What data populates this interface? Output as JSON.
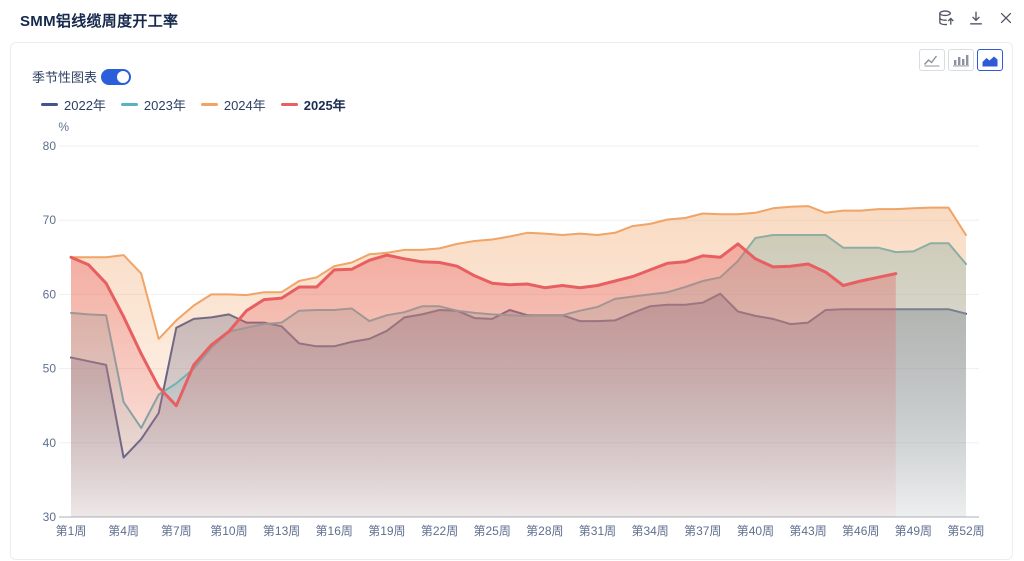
{
  "header": {
    "title": "SMM铝线缆周度开工率",
    "icons": [
      {
        "name": "export-data-icon"
      },
      {
        "name": "download-icon"
      },
      {
        "name": "close-icon"
      }
    ]
  },
  "controls": {
    "seasonal_toggle_label": "季节性图表",
    "seasonal_toggle_on": true,
    "toggle_color": "#2b5fd9",
    "chart_type_buttons": [
      "line",
      "bar",
      "area"
    ],
    "selected_chart_type": "area",
    "selected_color": "#2f5bd7"
  },
  "chart_data": {
    "type": "area",
    "title": "SMM铝线缆周度开工率",
    "unit": "%",
    "ylim": [
      30,
      80
    ],
    "y_ticks": [
      30,
      40,
      50,
      60,
      70,
      80
    ],
    "x_weeks": 52,
    "x_tick_weeks": [
      1,
      4,
      7,
      10,
      13,
      16,
      19,
      22,
      25,
      28,
      31,
      34,
      37,
      40,
      43,
      46,
      49,
      52
    ],
    "x_tick_labels": [
      "第1周",
      "第4周",
      "第7周",
      "第10周",
      "第13周",
      "第16周",
      "第19周",
      "第22周",
      "第25周",
      "第28周",
      "第31周",
      "第34周",
      "第37周",
      "第40周",
      "第43周",
      "第46周",
      "第49周",
      "第52周"
    ],
    "grid": true,
    "legend_position": "top-left",
    "series": [
      {
        "name": "2022年",
        "color": "#46548c",
        "line_width": 2,
        "current": false,
        "values": [
          51.5,
          51,
          50.5,
          38,
          40.5,
          44,
          55.5,
          56.7,
          56.9,
          57.3,
          56.2,
          56.2,
          55.7,
          53.4,
          53,
          53,
          53.6,
          54,
          55.1,
          56.9,
          57.3,
          57.9,
          57.8,
          56.8,
          56.7,
          57.9,
          57.2,
          57.2,
          57.2,
          56.4,
          56.4,
          56.5,
          57.5,
          58.4,
          58.6,
          58.6,
          58.9,
          60.1,
          57.7,
          57.1,
          56.7,
          56,
          56.2,
          57.9,
          58,
          58,
          58,
          58,
          58,
          58,
          58,
          57.4
        ]
      },
      {
        "name": "2023年",
        "color": "#55b4c4",
        "line_width": 2,
        "current": false,
        "values": [
          57.5,
          57.3,
          57.2,
          45.5,
          42,
          46.5,
          48,
          50,
          52.8,
          55,
          55.5,
          56,
          56.2,
          57.8,
          57.9,
          57.9,
          58.1,
          56.4,
          57.2,
          57.6,
          58.4,
          58.4,
          57.8,
          57.5,
          57.3,
          57.2,
          57.1,
          57.2,
          57.2,
          57.8,
          58.3,
          59.4,
          59.7,
          60,
          60.3,
          61,
          61.8,
          62.3,
          64.5,
          67.6,
          68,
          68,
          68,
          68,
          66.3,
          66.3,
          66.3,
          65.7,
          65.8,
          66.9,
          66.9,
          64.1
        ]
      },
      {
        "name": "2024年",
        "color": "#f0a467",
        "line_width": 2,
        "current": false,
        "values": [
          65,
          65,
          65,
          65.3,
          62.8,
          54,
          56.5,
          58.5,
          60,
          60,
          59.9,
          60.3,
          60.3,
          61.8,
          62.3,
          63.8,
          64.3,
          65.4,
          65.6,
          66,
          66,
          66.2,
          66.8,
          67.2,
          67.4,
          67.8,
          68.3,
          68.2,
          68,
          68.2,
          68,
          68.3,
          69.2,
          69.5,
          70.1,
          70.3,
          70.9,
          70.8,
          70.8,
          71,
          71.6,
          71.8,
          71.9,
          71,
          71.3,
          71.3,
          71.5,
          71.5,
          71.6,
          71.7,
          71.7,
          68
        ]
      },
      {
        "name": "2025年",
        "color": "#e85f61",
        "line_width": 3,
        "current": true,
        "values": [
          65,
          64,
          61.5,
          57,
          52,
          47.5,
          45,
          50.5,
          53.2,
          55,
          57.8,
          59.3,
          59.5,
          61,
          61,
          63.3,
          63.4,
          64.6,
          65.3,
          64.8,
          64.4,
          64.3,
          63.8,
          62.5,
          61.5,
          61.3,
          61.4,
          60.9,
          61.2,
          60.9,
          61.2,
          61.8,
          62.4,
          63.3,
          64.2,
          64.4,
          65.2,
          65,
          66.8,
          64.8,
          63.7,
          63.8,
          64.1,
          63,
          61.2,
          61.8,
          62.3,
          62.8
        ]
      }
    ]
  }
}
